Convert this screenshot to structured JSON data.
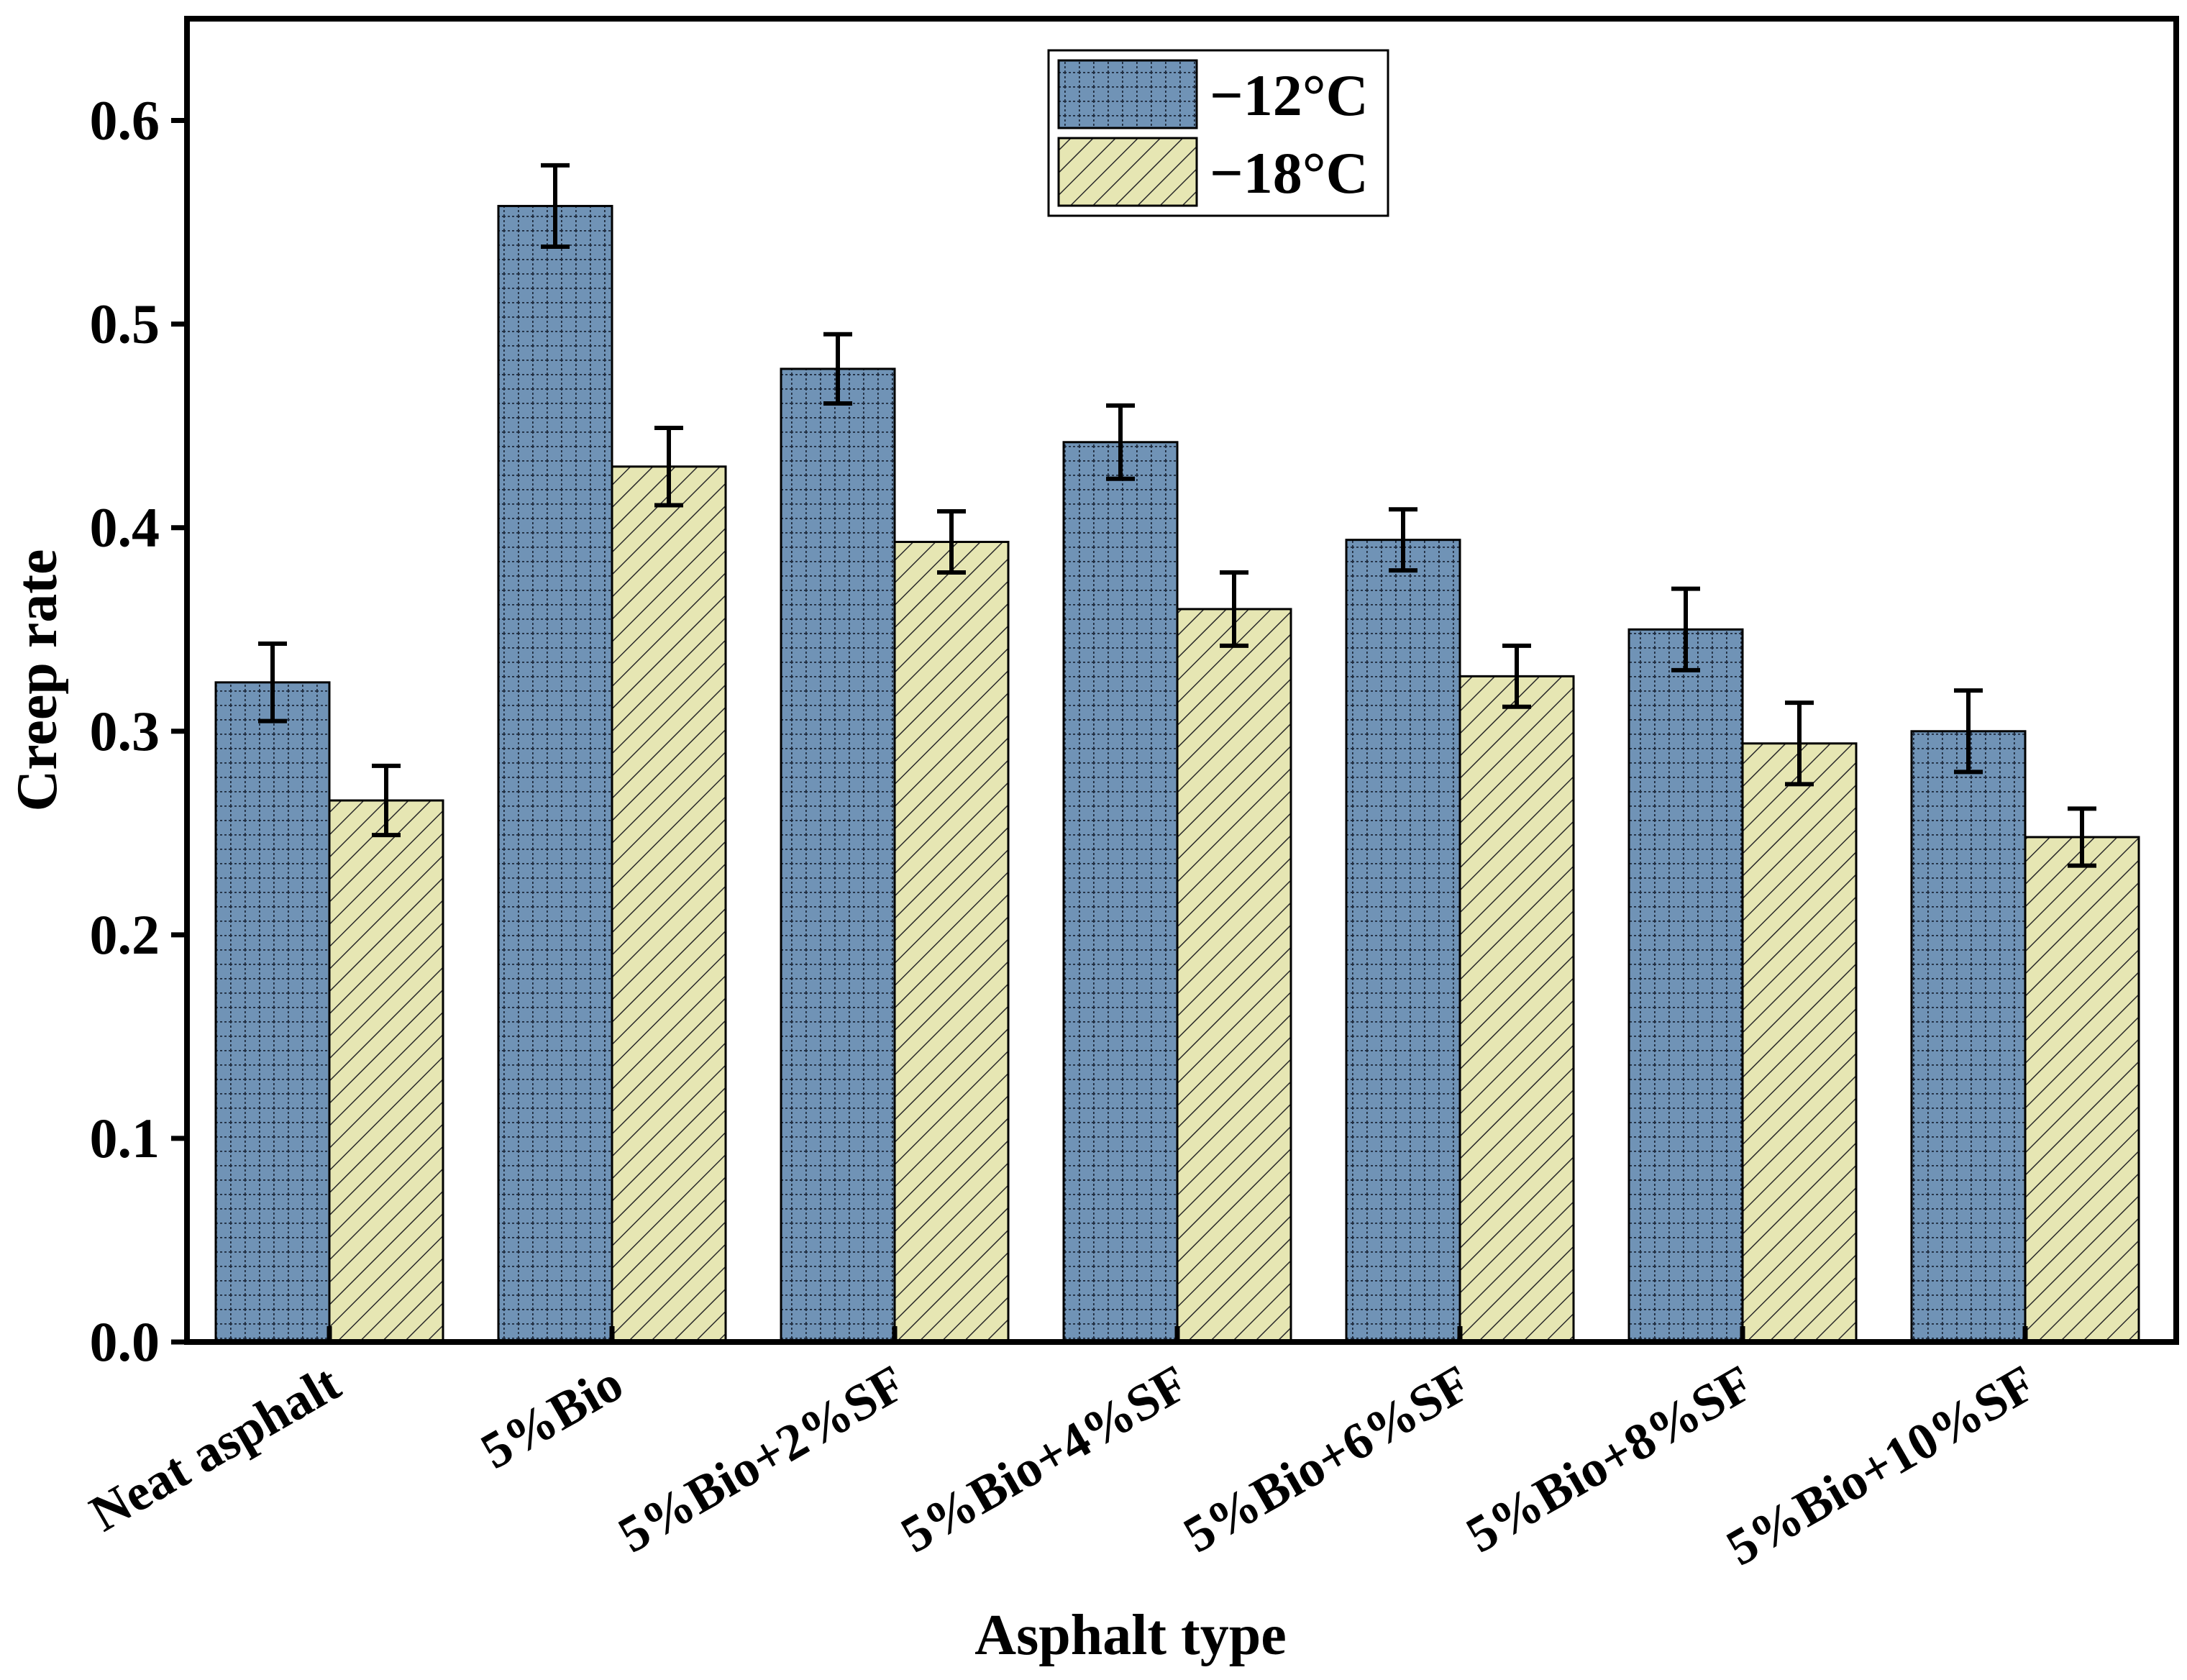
{
  "chart_data": {
    "type": "bar",
    "title": "",
    "xlabel": "Asphalt type",
    "ylabel": "Creep rate",
    "ylim": [
      0,
      0.65
    ],
    "yticks": [
      "0.0",
      "0.1",
      "0.2",
      "0.3",
      "0.4",
      "0.5",
      "0.6"
    ],
    "ytick_values": [
      0,
      0.1,
      0.2,
      0.3,
      0.4,
      0.5,
      0.6
    ],
    "grid": false,
    "legend_position": "top-center",
    "categories": [
      "Neat asphalt",
      "5%Bio",
      "5%Bio+2%SF",
      "5%Bio+4%SF",
      "5%Bio+6%SF",
      "5%Bio+8%SF",
      "5%Bio+10%SF"
    ],
    "series": [
      {
        "name": "−12°C",
        "color": "#7093b6",
        "pattern": "dotted-grid",
        "values": [
          0.324,
          0.558,
          0.478,
          0.442,
          0.394,
          0.35,
          0.3
        ],
        "errors": [
          0.019,
          0.02,
          0.017,
          0.018,
          0.015,
          0.02,
          0.02
        ]
      },
      {
        "name": "−18°C",
        "color": "#e6e6b3",
        "pattern": "diagonal-hatch",
        "values": [
          0.266,
          0.43,
          0.393,
          0.36,
          0.327,
          0.294,
          0.248
        ],
        "errors": [
          0.017,
          0.019,
          0.015,
          0.018,
          0.015,
          0.02,
          0.014
        ]
      }
    ]
  }
}
